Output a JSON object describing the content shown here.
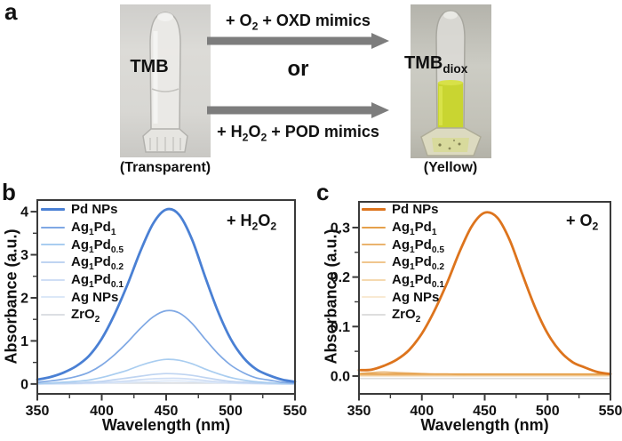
{
  "panel_a": {
    "label": "a",
    "left_vial": {
      "label": "TMB",
      "caption": "(Transparent)"
    },
    "right_vial": {
      "label_segments": [
        [
          "t",
          "TMB"
        ],
        [
          "s",
          "diox"
        ]
      ],
      "caption": "(Yellow)"
    },
    "top_route_segments": [
      [
        "t",
        "+ O"
      ],
      [
        "s",
        "2"
      ],
      [
        "t",
        " + OXD mimics"
      ]
    ],
    "or_label": "or",
    "bottom_route_segments": [
      [
        "t",
        "+ H"
      ],
      [
        "s",
        "2"
      ],
      [
        "t",
        "O"
      ],
      [
        "s",
        "2"
      ],
      [
        "t",
        " + POD mimics"
      ]
    ],
    "arrow_color": "#7d7d7d",
    "liquid_yellow": "#c9d531"
  },
  "chart_data": [
    {
      "panel": "b",
      "type": "line",
      "xlabel": "Wavelength (nm)",
      "ylabel": "Absorbance (a.u.)",
      "annotation_segments": [
        [
          "t",
          "+ H"
        ],
        [
          "s",
          "2"
        ],
        [
          "t",
          "O"
        ],
        [
          "s",
          "2"
        ]
      ],
      "xlim": [
        350,
        550
      ],
      "ylim": [
        -0.23,
        4.27
      ],
      "xticks": [
        350,
        400,
        450,
        500,
        550
      ],
      "xticks_minor": [
        375,
        425,
        475,
        525
      ],
      "yticks": [
        0,
        1,
        2,
        3,
        4
      ],
      "ytick_labels": [
        "0",
        "1",
        "2",
        "3",
        "4"
      ],
      "yticks_minor": [
        0.5,
        1.5,
        2.5,
        3.5
      ],
      "x": [
        350,
        360,
        370,
        380,
        390,
        400,
        410,
        420,
        430,
        440,
        450,
        460,
        470,
        480,
        490,
        500,
        510,
        520,
        530,
        540,
        550
      ],
      "series": [
        {
          "name_segments": [
            [
              "t",
              "Pd NPs"
            ]
          ],
          "color": "#4a80d4",
          "values": [
            0.1,
            0.16,
            0.26,
            0.41,
            0.65,
            1.05,
            1.62,
            2.31,
            3.08,
            3.73,
            4.05,
            3.93,
            3.36,
            2.51,
            1.7,
            1.05,
            0.61,
            0.34,
            0.2,
            0.1,
            0.05
          ]
        },
        {
          "name_segments": [
            [
              "t",
              "Ag"
            ],
            [
              "s",
              "1"
            ],
            [
              "t",
              "Pd"
            ],
            [
              "s",
              "1"
            ]
          ],
          "color": "#7fa8e4",
          "values": [
            0.04,
            0.07,
            0.11,
            0.17,
            0.27,
            0.44,
            0.68,
            0.97,
            1.29,
            1.56,
            1.7,
            1.65,
            1.41,
            1.05,
            0.71,
            0.44,
            0.26,
            0.14,
            0.09,
            0.04,
            0.02
          ]
        },
        {
          "name_segments": [
            [
              "t",
              "Ag"
            ],
            [
              "s",
              "1"
            ],
            [
              "t",
              "Pd"
            ],
            [
              "s",
              "0.5"
            ]
          ],
          "color": "#a9cdf0",
          "values": [
            0.01,
            0.02,
            0.04,
            0.06,
            0.09,
            0.15,
            0.23,
            0.32,
            0.43,
            0.52,
            0.57,
            0.55,
            0.47,
            0.35,
            0.24,
            0.15,
            0.09,
            0.05,
            0.03,
            0.01,
            0.01
          ]
        },
        {
          "name_segments": [
            [
              "t",
              "Ag"
            ],
            [
              "s",
              "1"
            ],
            [
              "t",
              "Pd"
            ],
            [
              "s",
              "0.2"
            ]
          ],
          "color": "#bfd4f1",
          "values": [
            0.01,
            0.01,
            0.02,
            0.02,
            0.04,
            0.06,
            0.1,
            0.14,
            0.18,
            0.22,
            0.24,
            0.23,
            0.2,
            0.15,
            0.1,
            0.06,
            0.04,
            0.02,
            0.01,
            0.01,
            0.0
          ]
        },
        {
          "name_segments": [
            [
              "t",
              "Ag"
            ],
            [
              "s",
              "1"
            ],
            [
              "t",
              "Pd"
            ],
            [
              "s",
              "0.1"
            ]
          ],
          "color": "#cfdef5",
          "values": [
            0.0,
            0.01,
            0.01,
            0.01,
            0.02,
            0.03,
            0.05,
            0.07,
            0.1,
            0.12,
            0.13,
            0.13,
            0.11,
            0.08,
            0.05,
            0.03,
            0.02,
            0.01,
            0.01,
            0.0,
            0.0
          ]
        },
        {
          "name_segments": [
            [
              "t",
              "Ag NPs"
            ]
          ],
          "color": "#dce8f8",
          "values": [
            0.0,
            0.0,
            0.0,
            0.01,
            0.01,
            0.02,
            0.03,
            0.04,
            0.05,
            0.06,
            0.07,
            0.07,
            0.06,
            0.04,
            0.03,
            0.02,
            0.01,
            0.01,
            0.0,
            0.0,
            0.0
          ]
        },
        {
          "name_segments": [
            [
              "t",
              "ZrO"
            ],
            [
              "s",
              "2"
            ]
          ],
          "color": "#dcdfe3",
          "values": 0.02
        }
      ]
    },
    {
      "panel": "c",
      "type": "line",
      "xlabel": "Wavelength (nm)",
      "ylabel": "Absorbance (a.u.)",
      "annotation_segments": [
        [
          "t",
          "+ O"
        ],
        [
          "s",
          "2"
        ]
      ],
      "xlim": [
        350,
        550
      ],
      "ylim": [
        -0.036,
        0.352
      ],
      "xticks": [
        350,
        400,
        450,
        500,
        550
      ],
      "xticks_minor": [
        375,
        425,
        475,
        525
      ],
      "yticks": [
        0,
        0.1,
        0.2,
        0.3
      ],
      "ytick_labels": [
        "0.0",
        "0.1",
        "0.2",
        "0.3"
      ],
      "yticks_minor": [
        0.05,
        0.15,
        0.25
      ],
      "x": [
        350,
        360,
        370,
        380,
        390,
        400,
        410,
        420,
        430,
        440,
        450,
        460,
        470,
        480,
        490,
        500,
        510,
        520,
        530,
        540,
        550
      ],
      "series": [
        {
          "name_segments": [
            [
              "t",
              "Pd NPs"
            ]
          ],
          "color": "#dd741d",
          "values": [
            0.012,
            0.013,
            0.021,
            0.033,
            0.053,
            0.086,
            0.132,
            0.188,
            0.251,
            0.304,
            0.33,
            0.32,
            0.274,
            0.205,
            0.139,
            0.086,
            0.05,
            0.028,
            0.017,
            0.008,
            0.004
          ]
        },
        {
          "name_segments": [
            [
              "t",
              "Ag"
            ],
            [
              "s",
              "1"
            ],
            [
              "t",
              "Pd"
            ],
            [
              "s",
              "1"
            ]
          ],
          "color": "#e5a04b",
          "values": 0.004
        },
        {
          "name_segments": [
            [
              "t",
              "Ag"
            ],
            [
              "s",
              "1"
            ],
            [
              "t",
              "Pd"
            ],
            [
              "s",
              "0.5"
            ]
          ],
          "color": "#eab36e",
          "values": [
            0.005,
            0.007,
            0.008,
            0.007,
            0.006,
            0.005,
            0.004,
            0.004,
            0.003,
            0.003,
            0.003,
            0.003,
            0.003,
            0.003,
            0.003,
            0.003,
            0.003,
            0.003,
            0.003,
            0.003,
            0.003
          ]
        },
        {
          "name_segments": [
            [
              "t",
              "Ag"
            ],
            [
              "s",
              "1"
            ],
            [
              "t",
              "Pd"
            ],
            [
              "s",
              "0.2"
            ]
          ],
          "color": "#f0c68e",
          "values": 0.002
        },
        {
          "name_segments": [
            [
              "t",
              "Ag"
            ],
            [
              "s",
              "1"
            ],
            [
              "t",
              "Pd"
            ],
            [
              "s",
              "0.1"
            ]
          ],
          "color": "#f5d9b0",
          "values": 0.001
        },
        {
          "name_segments": [
            [
              "t",
              "Ag NPs"
            ]
          ],
          "color": "#f9ead3",
          "values": 0.0
        },
        {
          "name_segments": [
            [
              "t",
              "ZrO"
            ],
            [
              "s",
              "2"
            ]
          ],
          "color": "#dedede",
          "values": -0.005
        }
      ]
    }
  ]
}
